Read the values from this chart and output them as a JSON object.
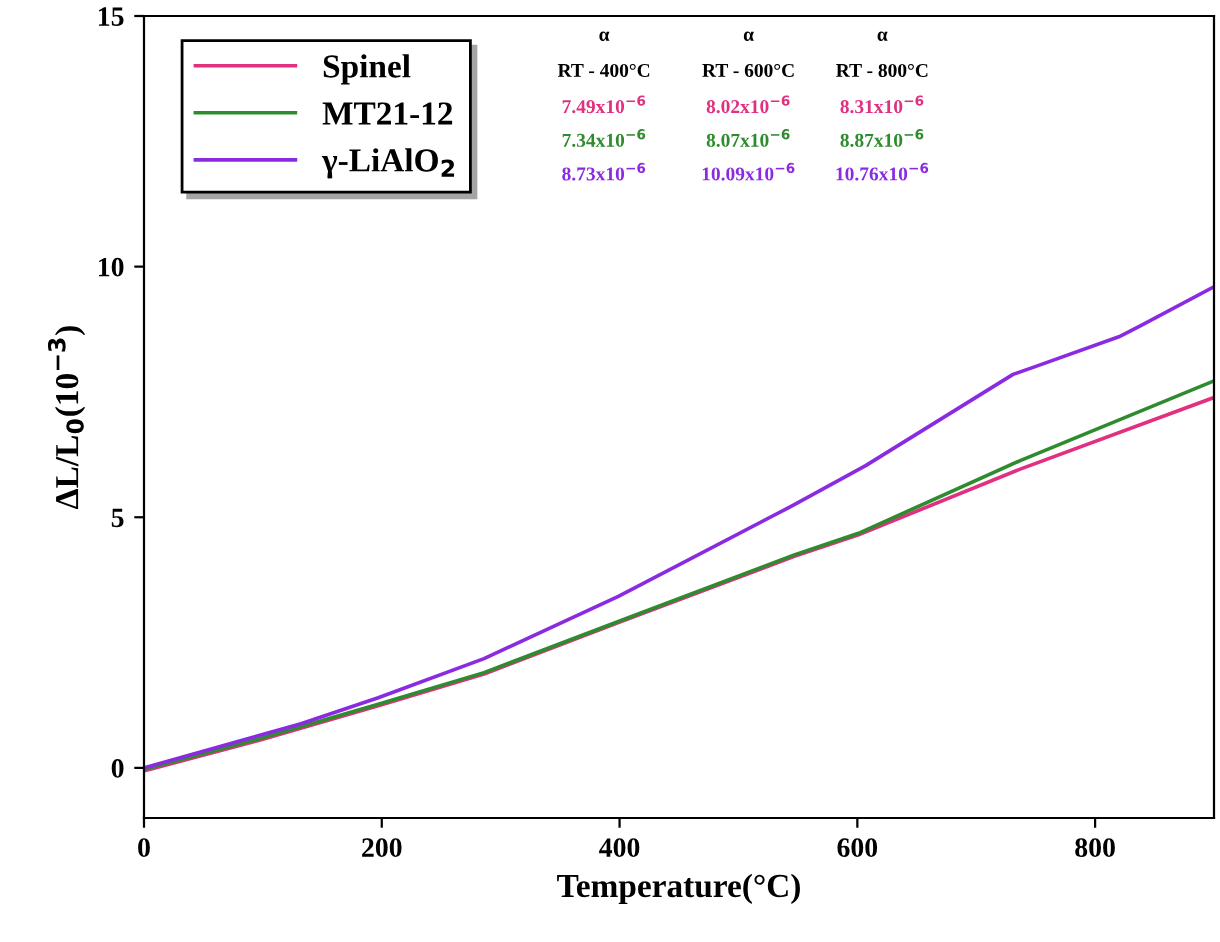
{
  "chart_data": {
    "type": "line",
    "xlabel": "Temperature(°C)",
    "ylabel": "ΔL/L$_{0}$(10$^{−3}$)",
    "xlim": [
      0,
      900
    ],
    "ylim": [
      -1,
      15
    ],
    "xticks": [
      0,
      200,
      400,
      600,
      800
    ],
    "yticks": [
      0,
      5,
      10,
      15
    ],
    "grid": false,
    "legend": "top left",
    "marker": "none",
    "line_style": "solid",
    "series": [
      {
        "name": "Spinel",
        "color": "#e0307f",
        "x": [
          0,
          97,
          197,
          286,
          399,
          547,
          601,
          737,
          900
        ],
        "values": [
          -0.06,
          0.55,
          1.24,
          1.87,
          2.9,
          4.22,
          4.65,
          5.96,
          7.39
        ]
      },
      {
        "name": "MT21-12",
        "color": "#2e8b2e",
        "x": [
          0,
          97,
          197,
          286,
          399,
          547,
          601,
          737,
          900
        ],
        "values": [
          -0.03,
          0.58,
          1.27,
          1.9,
          2.92,
          4.25,
          4.68,
          6.13,
          7.72
        ]
      },
      {
        "name": "γ-LiAlO$_{2}$",
        "color": "#8a2be2",
        "x": [
          0,
          132,
          197,
          286,
          399,
          547,
          607,
          731,
          749,
          820,
          838,
          900
        ],
        "values": [
          0,
          0.88,
          1.4,
          2.18,
          3.42,
          5.25,
          6.03,
          7.85,
          8.0,
          8.6,
          8.82,
          9.6
        ]
      }
    ],
    "annotations": [
      "α",
      "α",
      "α",
      "RT - 400°C",
      "RT - 600°C",
      "RT - 800°C",
      "7.49x10$^{−6}$",
      "8.02x10$^{−6}$",
      "8.31x10$^{−6}$",
      "7.34x10$^{−6}$",
      "8.07x10$^{−6}$",
      "8.87x10$^{−6}$",
      "8.73x10$^{−6}$",
      "10.09x10$^{−6}$",
      "10.76x10$^{−6}$"
    ]
  }
}
